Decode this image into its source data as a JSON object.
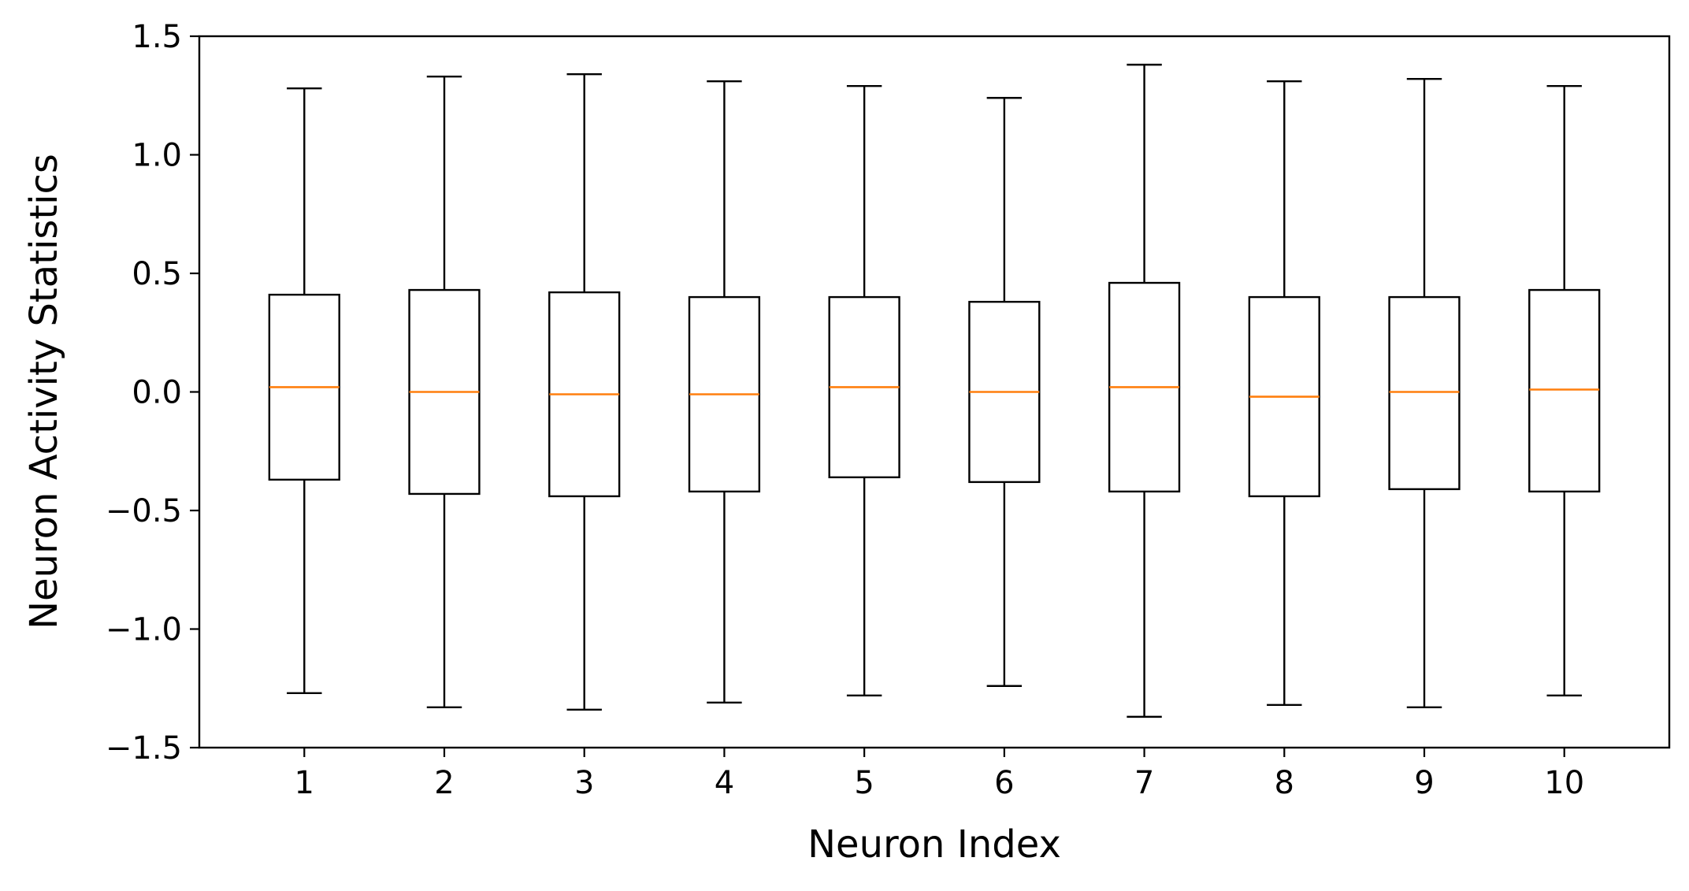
{
  "chart_data": {
    "type": "box",
    "title": "",
    "xlabel": "Neuron Index",
    "ylabel": "Neuron Activity Statistics",
    "categories": [
      "1",
      "2",
      "3",
      "4",
      "5",
      "6",
      "7",
      "8",
      "9",
      "10"
    ],
    "x_ticks": [
      "1",
      "2",
      "3",
      "4",
      "5",
      "6",
      "7",
      "8",
      "9",
      "10"
    ],
    "y_ticks": [
      {
        "value": 1.5,
        "label": "1.5"
      },
      {
        "value": 1.0,
        "label": "1.0"
      },
      {
        "value": 0.5,
        "label": "0.5"
      },
      {
        "value": 0.0,
        "label": "0.0"
      },
      {
        "value": -0.5,
        "label": "−0.5"
      },
      {
        "value": -1.0,
        "label": "−1.0"
      },
      {
        "value": -1.5,
        "label": "−1.5"
      }
    ],
    "ylim": [
      -1.5,
      1.5
    ],
    "grid": false,
    "boxes": [
      {
        "label": "1",
        "whisker_low": -1.27,
        "q1": -0.37,
        "median": 0.02,
        "q3": 0.41,
        "whisker_high": 1.28
      },
      {
        "label": "2",
        "whisker_low": -1.33,
        "q1": -0.43,
        "median": 0.0,
        "q3": 0.43,
        "whisker_high": 1.33
      },
      {
        "label": "3",
        "whisker_low": -1.34,
        "q1": -0.44,
        "median": -0.01,
        "q3": 0.42,
        "whisker_high": 1.34
      },
      {
        "label": "4",
        "whisker_low": -1.31,
        "q1": -0.42,
        "median": -0.01,
        "q3": 0.4,
        "whisker_high": 1.31
      },
      {
        "label": "5",
        "whisker_low": -1.28,
        "q1": -0.36,
        "median": 0.02,
        "q3": 0.4,
        "whisker_high": 1.29
      },
      {
        "label": "6",
        "whisker_low": -1.24,
        "q1": -0.38,
        "median": 0.0,
        "q3": 0.38,
        "whisker_high": 1.24
      },
      {
        "label": "7",
        "whisker_low": -1.37,
        "q1": -0.42,
        "median": 0.02,
        "q3": 0.46,
        "whisker_high": 1.38
      },
      {
        "label": "8",
        "whisker_low": -1.32,
        "q1": -0.44,
        "median": -0.02,
        "q3": 0.4,
        "whisker_high": 1.31
      },
      {
        "label": "9",
        "whisker_low": -1.33,
        "q1": -0.41,
        "median": 0.0,
        "q3": 0.4,
        "whisker_high": 1.32
      },
      {
        "label": "10",
        "whisker_low": -1.28,
        "q1": -0.42,
        "median": 0.01,
        "q3": 0.43,
        "whisker_high": 1.29
      }
    ],
    "colors": {
      "box": "#000000",
      "median": "#ff7f0e",
      "axes": "#000000",
      "background": "#ffffff"
    }
  }
}
